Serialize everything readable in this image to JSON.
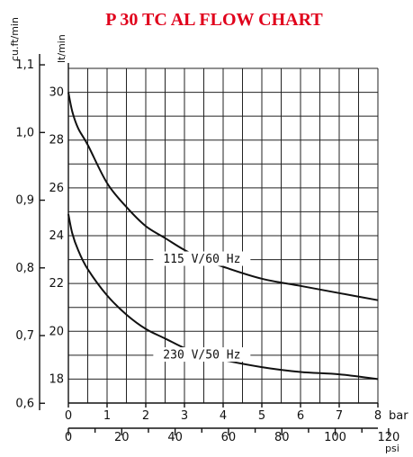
{
  "chart_data": {
    "type": "line",
    "title": "P 30 TC AL FLOW CHART",
    "x_unit": "bar",
    "x_secondary_unit": "psi",
    "y_unit": "lt/min",
    "y_secondary_unit": "cu.ft/min",
    "xlim": [
      0,
      8
    ],
    "ylim": [
      17,
      31
    ],
    "x_ticks": [
      "0",
      "1",
      "2",
      "3",
      "4",
      "5",
      "6",
      "7",
      "8"
    ],
    "psi_ticks": [
      "0",
      "20",
      "40",
      "60",
      "80",
      "100",
      "120"
    ],
    "y_ticks": [
      "18",
      "20",
      "22",
      "24",
      "26",
      "28",
      "30"
    ],
    "cuft_ticks": [
      "0,6",
      "0,7",
      "0,8",
      "0,9",
      "1,0",
      "1,1"
    ],
    "grid": true,
    "series": [
      {
        "name": "115 V/60 Hz",
        "x": [
          0,
          0.1,
          0.25,
          0.5,
          1,
          1.5,
          2,
          2.5,
          3,
          3.5,
          4,
          5,
          6,
          7,
          8
        ],
        "y": [
          30.0,
          29.2,
          28.5,
          27.8,
          26.2,
          25.2,
          24.4,
          23.9,
          23.4,
          23.0,
          22.7,
          22.2,
          21.9,
          21.6,
          21.3
        ]
      },
      {
        "name": "230 V/50 Hz",
        "x": [
          0,
          0.1,
          0.25,
          0.5,
          1,
          1.5,
          2,
          2.5,
          3,
          3.5,
          4,
          5,
          6,
          7,
          8
        ],
        "y": [
          24.9,
          24.1,
          23.4,
          22.6,
          21.5,
          20.7,
          20.1,
          19.7,
          19.3,
          19.0,
          18.8,
          18.5,
          18.3,
          18.2,
          18.0
        ]
      }
    ]
  }
}
